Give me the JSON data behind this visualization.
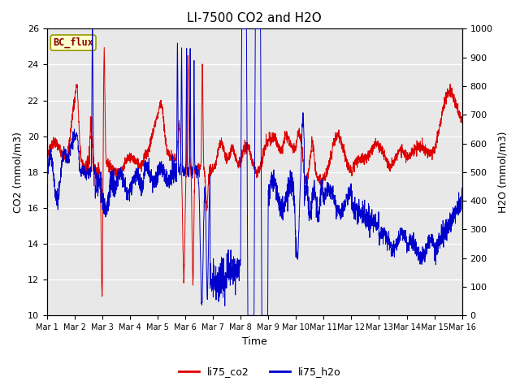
{
  "title": "LI-7500 CO2 and H2O",
  "xlabel": "Time",
  "ylabel_left": "CO2 (mmol/m3)",
  "ylabel_right": "H2O (mmol/m3)",
  "xlim_days": [
    1,
    16
  ],
  "ylim_left": [
    10,
    26
  ],
  "ylim_right": [
    0,
    1000
  ],
  "yticks_left": [
    10,
    12,
    14,
    16,
    18,
    20,
    22,
    24,
    26
  ],
  "yticks_right": [
    0,
    100,
    200,
    300,
    400,
    500,
    600,
    700,
    800,
    900,
    1000
  ],
  "xtick_labels": [
    "Mar 1",
    "Mar 2",
    "Mar 3",
    "Mar 4",
    "Mar 5",
    "Mar 6",
    "Mar 7",
    "Mar 8",
    "Mar 9",
    "Mar 10",
    "Mar 11",
    "Mar 12",
    "Mar 13",
    "Mar 14",
    "Mar 15",
    "Mar 16"
  ],
  "background_color": "#e8e8e8",
  "plot_bg_color": "#e8e8e8",
  "grid_color": "white",
  "co2_color": "#dd0000",
  "h2o_color": "#0000cc",
  "legend_labels": [
    "li75_co2",
    "li75_h2o"
  ],
  "bc_flux_box_facecolor": "#ffffcc",
  "bc_flux_box_edgecolor": "#999900",
  "bc_flux_text_color": "#880000",
  "title_fontsize": 11,
  "axis_label_fontsize": 9,
  "tick_fontsize": 8,
  "legend_fontsize": 9
}
